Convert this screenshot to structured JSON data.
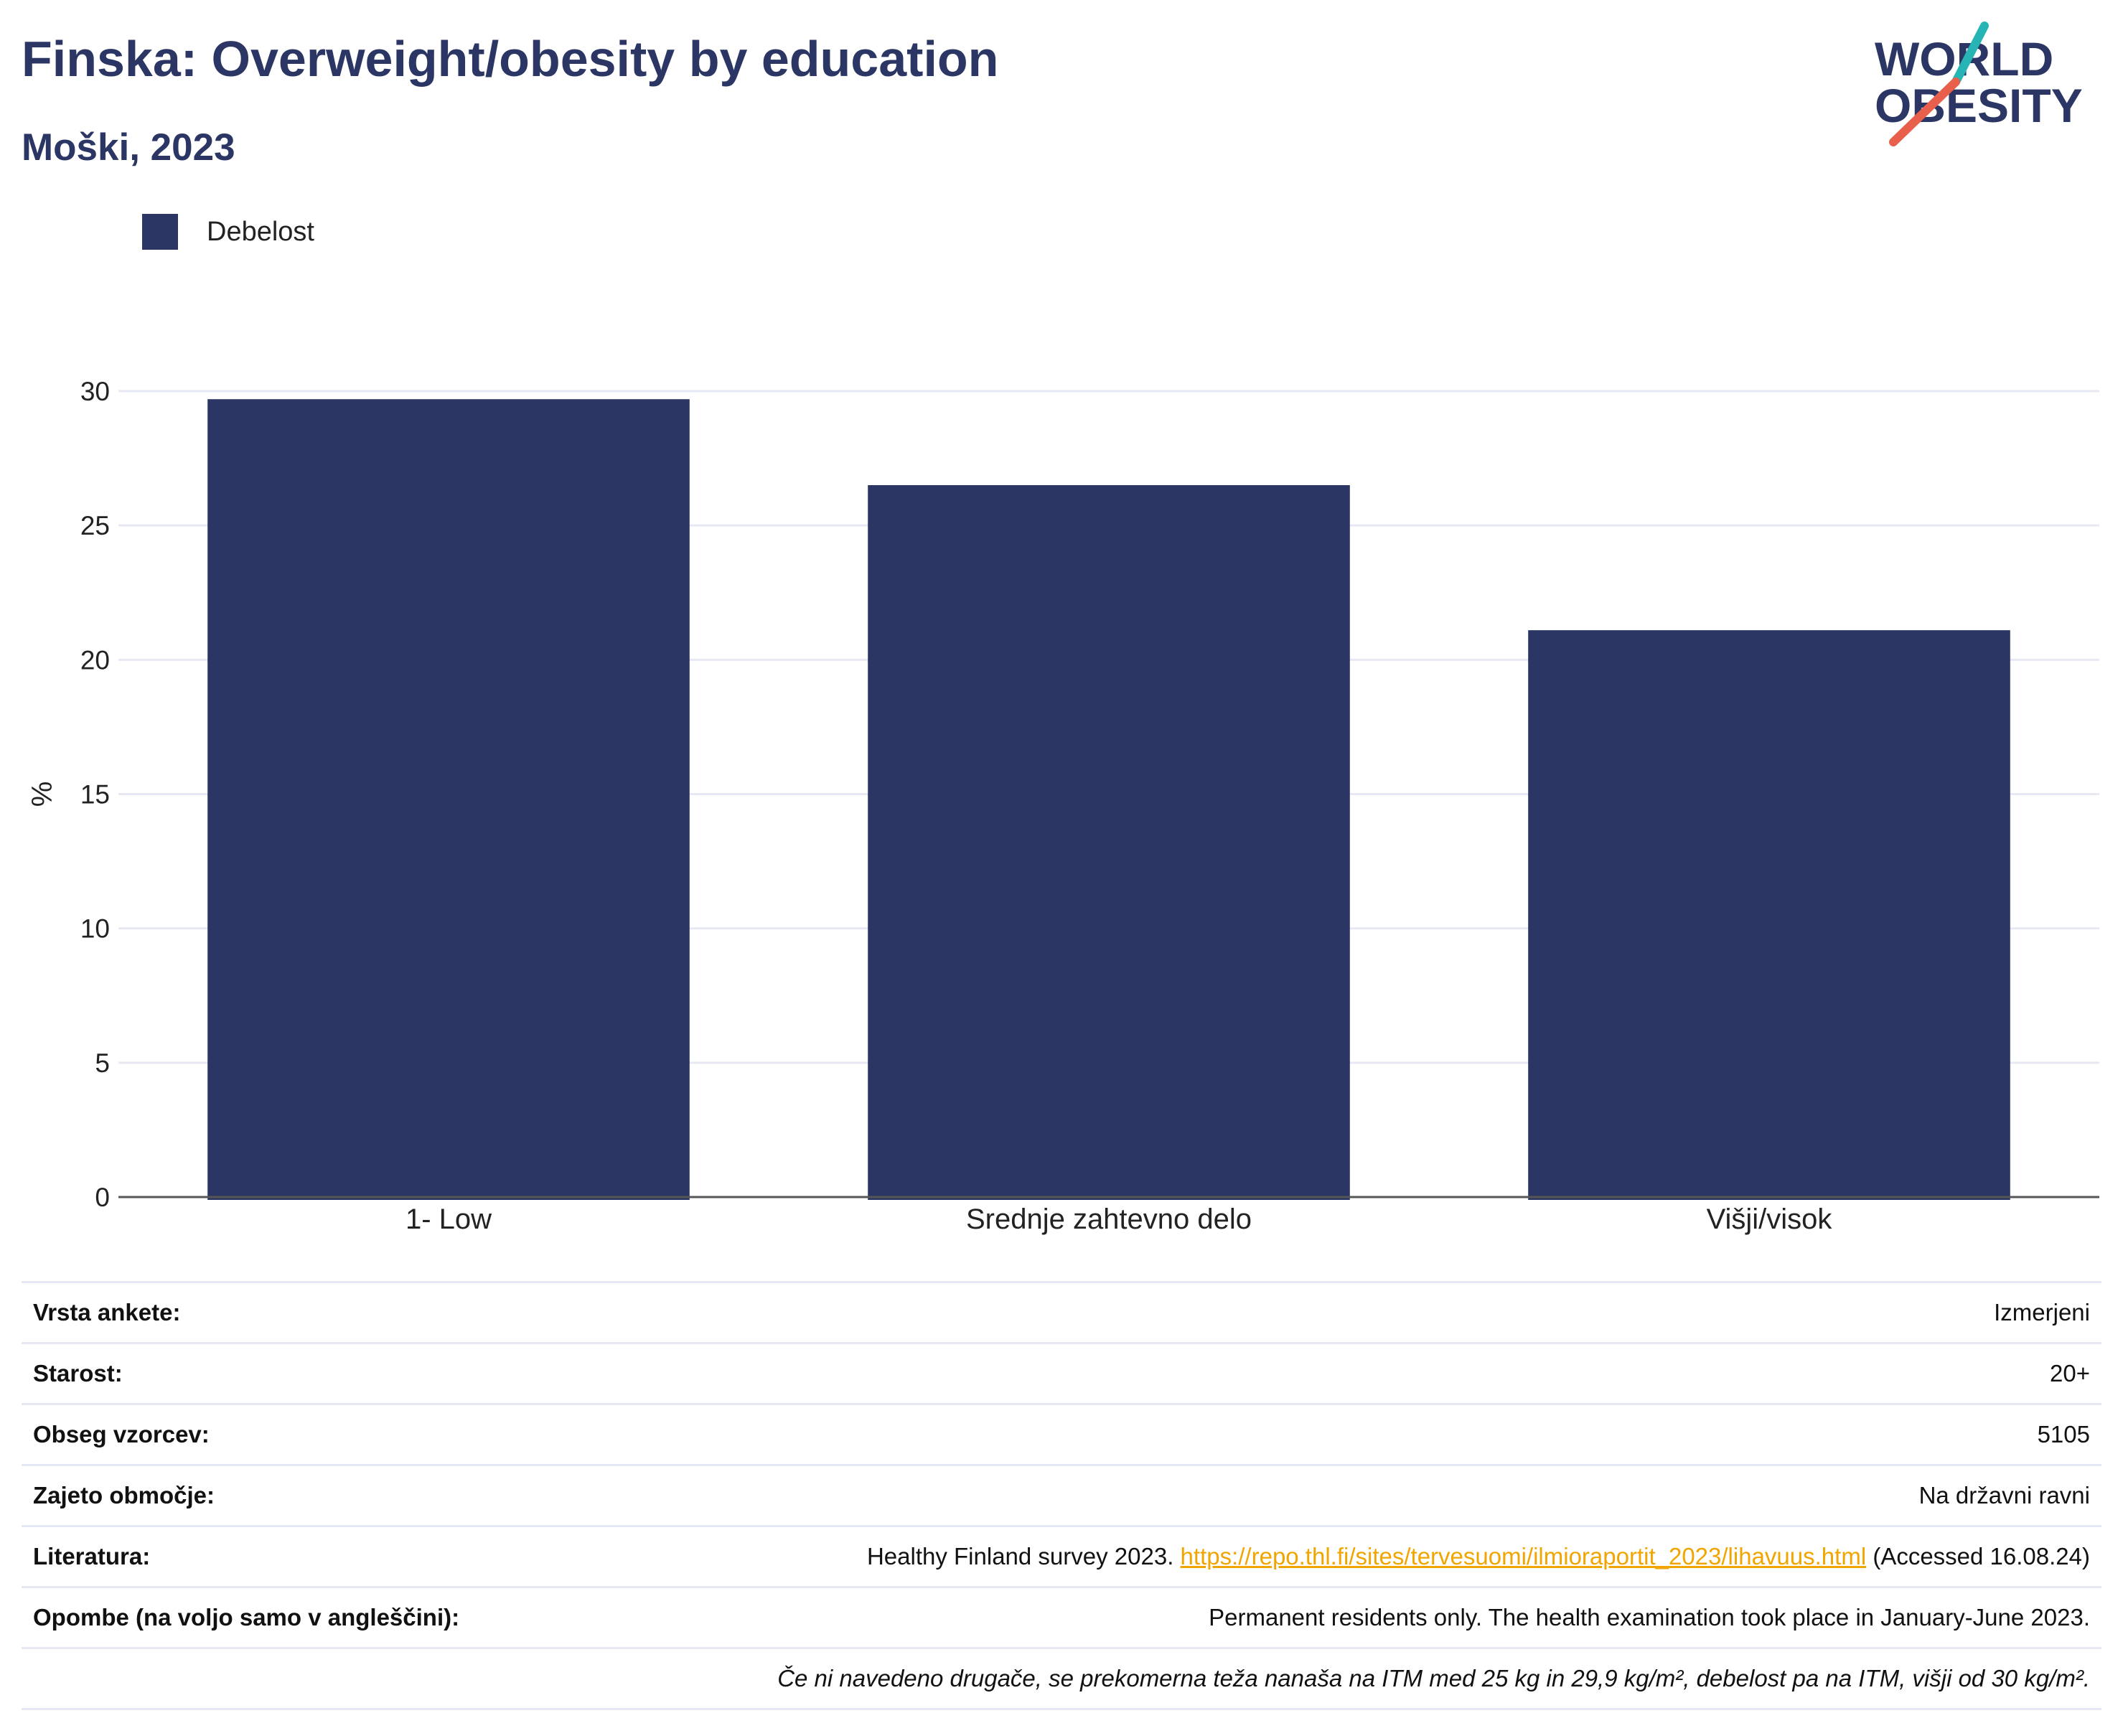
{
  "header": {
    "title": "Finska: Overweight/obesity by education",
    "subtitle": "Moški, 2023",
    "logo": {
      "line1": "WORLD",
      "line2": "OBESITY",
      "accent_teal": "#27b4b4",
      "accent_red": "#e8604c",
      "text_color": "#2b3664"
    }
  },
  "legend": {
    "label": "Debelost"
  },
  "colors": {
    "bar": "#2b3664",
    "grid": "#e6e9f4",
    "axis": "#555555",
    "link": "#f0a500"
  },
  "chart_data": {
    "type": "bar",
    "categories": [
      "1- Low",
      "Srednje zahtevno delo",
      "Višji/visok"
    ],
    "series": [
      {
        "name": "Debelost",
        "values": [
          29.7,
          26.5,
          21.1
        ]
      }
    ],
    "ylabel": "%",
    "ylim": [
      0,
      30
    ],
    "yticks": [
      0,
      5,
      10,
      15,
      20,
      25,
      30
    ],
    "grid": true
  },
  "info": {
    "survey_type": {
      "label": "Vrsta ankete:",
      "value": "Izmerjeni"
    },
    "age": {
      "label": "Starost:",
      "value": "20+"
    },
    "sample_size": {
      "label": "Obseg vzorcev:",
      "value": "5105"
    },
    "coverage": {
      "label": "Zajeto območje:",
      "value": "Na državni ravni"
    },
    "references": {
      "label": "Literatura:",
      "prefix": "Healthy Finland survey 2023. ",
      "link": "https://repo.thl.fi/sites/tervesuomi/ilmioraportit_2023/lihavuus.html",
      "suffix": " (Accessed 16.08.24)"
    },
    "notes": {
      "label": "Opombe (na voljo samo v angleščini):",
      "value": "Permanent residents only. The health examination took place in January-June 2023."
    },
    "footnote": "Če ni navedeno drugače, se prekomerna teža nanaša na ITM med 25 kg in 29,9 kg/m², debelost pa na ITM, višji od 30 kg/m²."
  }
}
